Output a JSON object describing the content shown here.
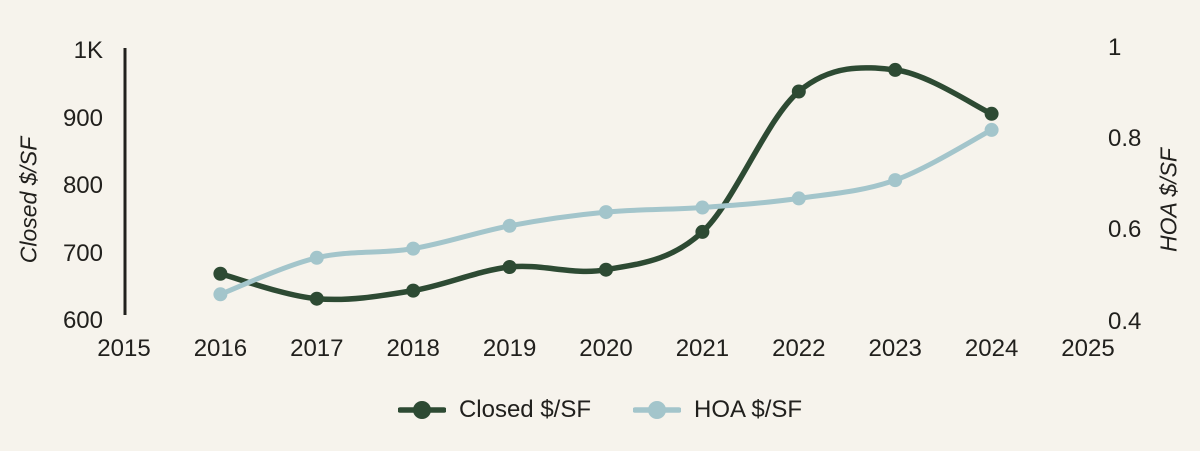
{
  "colors": {
    "background": "#f6f3ec",
    "closed": "#2d4a33",
    "hoa": "#a3c5cb",
    "text": "#21201d",
    "axis_line": "#21201d"
  },
  "chart_data": {
    "type": "line",
    "x": [
      2016,
      2017,
      2018,
      2019,
      2020,
      2021,
      2022,
      2023,
      2024
    ],
    "series": [
      {
        "name": "Closed $/SF",
        "axis": "left",
        "color_key": "closed",
        "values": [
          670,
          633,
          645,
          680,
          676,
          732,
          940,
          972,
          907
        ]
      },
      {
        "name": "HOA $/SF",
        "axis": "right",
        "color_key": "hoa",
        "values": [
          0.46,
          0.54,
          0.56,
          0.61,
          0.64,
          0.65,
          0.67,
          0.71,
          0.82
        ]
      }
    ],
    "left_axis": {
      "label": "Closed $/SF",
      "range": [
        600,
        1000
      ],
      "ticks": [
        {
          "value": 1000,
          "label": "1K"
        },
        {
          "value": 900,
          "label": "900"
        },
        {
          "value": 800,
          "label": "800"
        },
        {
          "value": 700,
          "label": "700"
        },
        {
          "value": 600,
          "label": "600"
        }
      ]
    },
    "right_axis": {
      "label": "HOA $/SF",
      "range": [
        0.4,
        1
      ],
      "ticks": [
        {
          "value": 1,
          "label": "1"
        },
        {
          "value": 0.8,
          "label": "0.8"
        },
        {
          "value": 0.6,
          "label": "0.6"
        },
        {
          "value": 0.4,
          "label": "0.4"
        }
      ]
    },
    "x_axis": {
      "range": [
        2015,
        2025
      ],
      "ticks": [
        {
          "value": 2015,
          "label": "2015"
        },
        {
          "value": 2016,
          "label": "2016"
        },
        {
          "value": 2017,
          "label": "2017"
        },
        {
          "value": 2018,
          "label": "2018"
        },
        {
          "value": 2019,
          "label": "2019"
        },
        {
          "value": 2020,
          "label": "2020"
        },
        {
          "value": 2021,
          "label": "2021"
        },
        {
          "value": 2022,
          "label": "2022"
        },
        {
          "value": 2023,
          "label": "2023"
        },
        {
          "value": 2024,
          "label": "2024"
        },
        {
          "value": 2025,
          "label": "2025"
        }
      ]
    },
    "legend": [
      {
        "label": "Closed $/SF",
        "color_key": "closed"
      },
      {
        "label": "HOA $/SF",
        "color_key": "hoa"
      }
    ],
    "grid": false,
    "legend_position": "bottom-center"
  }
}
